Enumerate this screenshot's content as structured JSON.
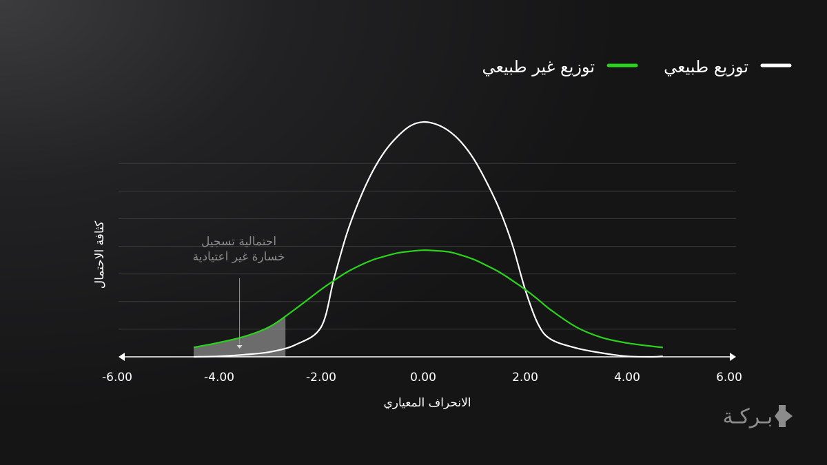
{
  "chart_data": {
    "type": "line",
    "x_label": "الانحراف المعياري",
    "y_label": "كثافة الاحتمال",
    "x": [
      -4.5,
      -4,
      -3.5,
      -3,
      -2.5,
      -2,
      -1.75,
      -1.5,
      -1.25,
      -1,
      -0.75,
      -0.5,
      -0.25,
      0,
      0.25,
      0.5,
      0.75,
      1,
      1.25,
      1.5,
      1.75,
      2,
      2.25,
      2.5,
      3,
      3.5,
      4,
      4.5,
      4.7
    ],
    "series": [
      {
        "name": "توزيع طبيعي",
        "color": "#ffffff",
        "values": [
          0,
          0.001,
          0.004,
          0.009,
          0.022,
          0.054,
          0.141,
          0.222,
          0.284,
          0.334,
          0.372,
          0.399,
          0.418,
          0.425,
          0.421,
          0.409,
          0.388,
          0.357,
          0.315,
          0.266,
          0.203,
          0.122,
          0.06,
          0.032,
          0.016,
          0.007,
          0.001,
          0,
          0.001
        ]
      },
      {
        "name": "توزيع غير طبيعي",
        "color": "#2bd41c",
        "values": [
          0.017,
          0.026,
          0.037,
          0.055,
          0.087,
          0.122,
          0.138,
          0.153,
          0.165,
          0.175,
          0.182,
          0.188,
          0.191,
          0.193,
          0.192,
          0.19,
          0.184,
          0.176,
          0.165,
          0.153,
          0.138,
          0.122,
          0.104,
          0.085,
          0.054,
          0.035,
          0.025,
          0.019,
          0.017
        ]
      }
    ],
    "shaded_region": {
      "from": -4.5,
      "to": -2.7,
      "color": "#8a8a8a"
    },
    "annotation": {
      "lines": [
        "احتمالية تسجيل",
        "خسارة غير اعتيادية"
      ],
      "x": -3.6
    },
    "xlim": [
      -6,
      6
    ],
    "xticks": [
      {
        "value": -6,
        "label": "-6.00"
      },
      {
        "value": -4,
        "label": "-4.00"
      },
      {
        "value": -2,
        "label": "-2.00"
      },
      {
        "value": 0,
        "label": "0.00"
      },
      {
        "value": 2,
        "label": "2.00"
      },
      {
        "value": 4,
        "label": "4.00"
      },
      {
        "value": 6,
        "label": "6.00"
      }
    ],
    "ylim": [
      0,
      0.45
    ],
    "yticks": [
      0.05,
      0.1,
      0.15,
      0.2,
      0.25,
      0.3,
      0.35
    ],
    "grid": true,
    "legend_position": "top-right"
  },
  "brand": "بـركـة"
}
